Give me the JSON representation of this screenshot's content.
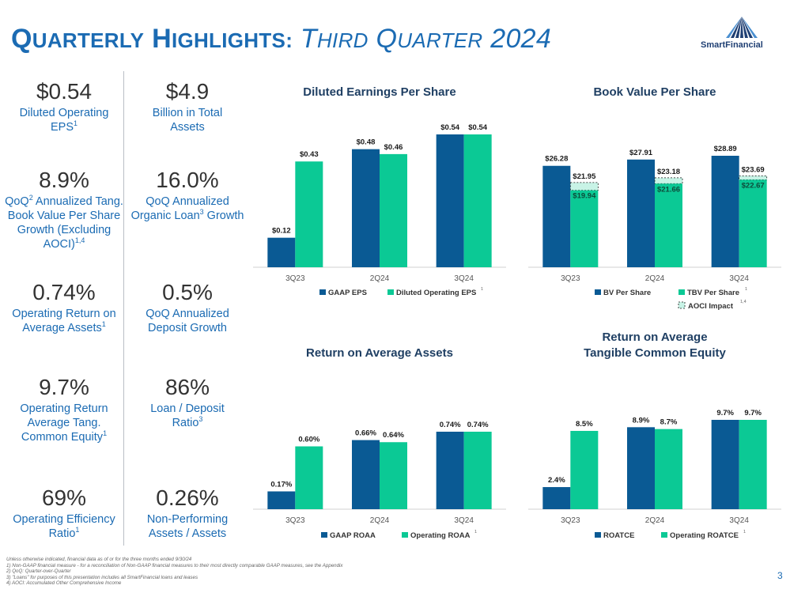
{
  "title": {
    "q": "Q",
    "uarterly": "UARTERLY",
    "h": " H",
    "ighlights": "IGHLIGHTS:",
    "t": " T",
    "hird": "HIRD",
    "q2": " Q",
    "uarter": "UARTER",
    "year": " 2024"
  },
  "logo": {
    "text": "SmartFinancial"
  },
  "metrics": [
    {
      "value": "$0.54",
      "label": "Diluted Operating EPS",
      "sup": "1"
    },
    {
      "value": "$4.9",
      "label": "Billion in Total Assets",
      "sup": ""
    },
    {
      "value": "8.9%",
      "label_a": "QoQ",
      "sup_a": "2",
      "label_b": " Annualized Tang. Book Value Per Share Growth (Excluding AOCI)",
      "sup": "1,4"
    },
    {
      "value": "16.0%",
      "label": "QoQ Annualized Organic Loan",
      "sup": "3",
      "label_after": " Growth"
    },
    {
      "value": "0.74%",
      "label": "Operating Return on Average Assets",
      "sup": "1"
    },
    {
      "value": "0.5%",
      "label": "QoQ Annualized Deposit Growth",
      "sup": ""
    },
    {
      "value": "9.7%",
      "label": "Operating Return Average Tang. Common Equity",
      "sup": "1"
    },
    {
      "value": "86%",
      "label": "Loan / Deposit Ratio",
      "sup": "3"
    },
    {
      "value": "69%",
      "label": "Operating Efficiency Ratio",
      "sup": "1"
    },
    {
      "value": "0.26%",
      "label": "Non-Performing Assets / Assets",
      "sup": ""
    }
  ],
  "colors": {
    "navy": "#0a5a94",
    "green": "#0bc995",
    "aoci": "#c8f3e6"
  },
  "chart_data": [
    {
      "type": "bar",
      "title": "Diluted Earnings Per Share",
      "categories": [
        "3Q23",
        "2Q24",
        "3Q24"
      ],
      "series": [
        {
          "name": "GAAP EPS",
          "values": [
            0.12,
            0.48,
            0.54
          ],
          "labels": [
            "$0.12",
            "$0.48",
            "$0.54"
          ]
        },
        {
          "name": "Diluted Operating EPS",
          "values": [
            0.43,
            0.46,
            0.54
          ],
          "labels": [
            "$0.43",
            "$0.46",
            "$0.54"
          ]
        }
      ],
      "ylim": [
        0,
        0.54
      ],
      "legend_sup": "1"
    },
    {
      "type": "bar",
      "title": "Book Value Per Share",
      "categories": [
        "3Q23",
        "2Q24",
        "3Q24"
      ],
      "series": [
        {
          "name": "BV Per Share",
          "values": [
            26.28,
            27.91,
            28.89
          ],
          "labels": [
            "$26.28",
            "$27.91",
            "$28.89"
          ]
        },
        {
          "name": "TBV Per Share",
          "values": [
            19.94,
            21.66,
            22.67
          ],
          "labels": [
            "$19.94",
            "$21.66",
            "$22.67"
          ]
        },
        {
          "name": "AOCI Impact",
          "values": [
            21.95,
            23.18,
            23.69
          ],
          "labels": [
            "$21.95",
            "$23.18",
            "$23.69"
          ]
        }
      ],
      "ylim": [
        0,
        28.89
      ],
      "legend_sup": "1",
      "legend_sup2": "1,4"
    },
    {
      "type": "bar",
      "title": "Return on Average Assets",
      "categories": [
        "3Q23",
        "2Q24",
        "3Q24"
      ],
      "series": [
        {
          "name": "GAAP ROAA",
          "values": [
            0.17,
            0.66,
            0.74
          ],
          "labels": [
            "0.17%",
            "0.66%",
            "0.74%"
          ]
        },
        {
          "name": "Operating ROAA",
          "values": [
            0.6,
            0.64,
            0.74
          ],
          "labels": [
            "0.60%",
            "0.64%",
            "0.74%"
          ]
        }
      ],
      "ylim": [
        0,
        0.74
      ],
      "legend_sup": "1"
    },
    {
      "type": "bar",
      "title": "Return on Average Tangible Common Equity",
      "categories": [
        "3Q23",
        "2Q24",
        "3Q24"
      ],
      "series": [
        {
          "name": "ROATCE",
          "values": [
            2.4,
            8.9,
            9.7
          ],
          "labels": [
            "2.4%",
            "8.9%",
            "9.7%"
          ]
        },
        {
          "name": "Operating ROATCE",
          "values": [
            8.5,
            8.7,
            9.7
          ],
          "labels": [
            "8.5%",
            "8.7%",
            "9.7%"
          ]
        }
      ],
      "ylim": [
        0,
        9.7
      ],
      "legend_sup": "1"
    }
  ],
  "footnotes": [
    "Unless otherwise indicated, financial data as of or for the three months ended 9/30/24",
    "1)    Non-GAAP financial measure - for a reconciliation of Non-GAAP financial measures to their most directly comparable GAAP measures, see the Appendix",
    "2)    QoQ: Quarter-over-Quarter",
    "3)    \"Loans\" for purposes of this presentation includes all SmartFinancial loans and leases",
    "4)    AOCI: Accumulated Other Comprehensive Income"
  ],
  "page_number": "3"
}
